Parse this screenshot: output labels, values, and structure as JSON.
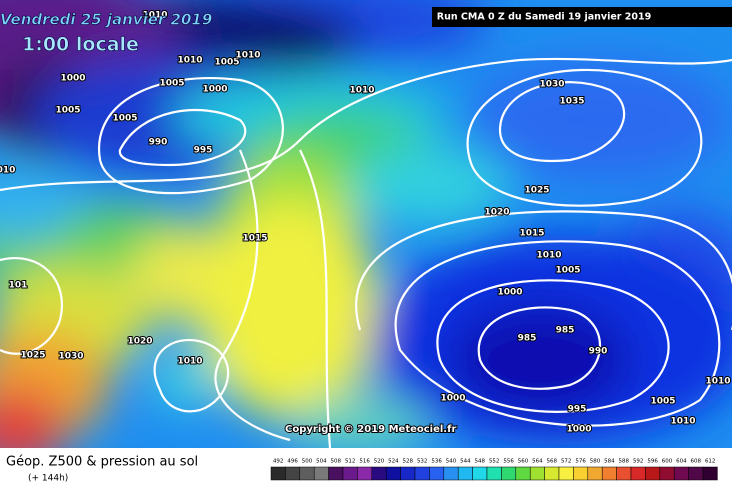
{
  "header": {
    "date": "Vendredi 25 janvier 2019",
    "time": "1:00 locale",
    "run": "Run CMA 0 Z du Samedi 19 janvier 2019"
  },
  "copyright": "Copyright © 2019 Meteociel.fr",
  "footer": {
    "title": "Géop. Z500 & pression au sol",
    "lead": "(+ 144h)"
  },
  "scale": [
    492,
    496,
    500,
    504,
    508,
    512,
    516,
    520,
    524,
    528,
    532,
    536,
    540,
    544,
    548,
    552,
    556,
    560,
    564,
    568,
    572,
    576,
    580,
    584,
    588,
    592,
    596,
    600,
    604,
    608,
    612
  ],
  "isobars": [
    "1010",
    "1010",
    "1005",
    "1010",
    "1000",
    "1005",
    "1000",
    "1005",
    "1005",
    "990",
    "995",
    "1010",
    "010",
    "1030",
    "1035",
    "1025",
    "1020",
    "1015",
    "1015",
    "1010",
    "1005",
    "101",
    "1000",
    "985",
    "985",
    "990",
    "1020",
    "1025",
    "1030",
    "1010",
    "1010",
    "1000",
    "1005",
    "995",
    "1010",
    "1000"
  ]
}
